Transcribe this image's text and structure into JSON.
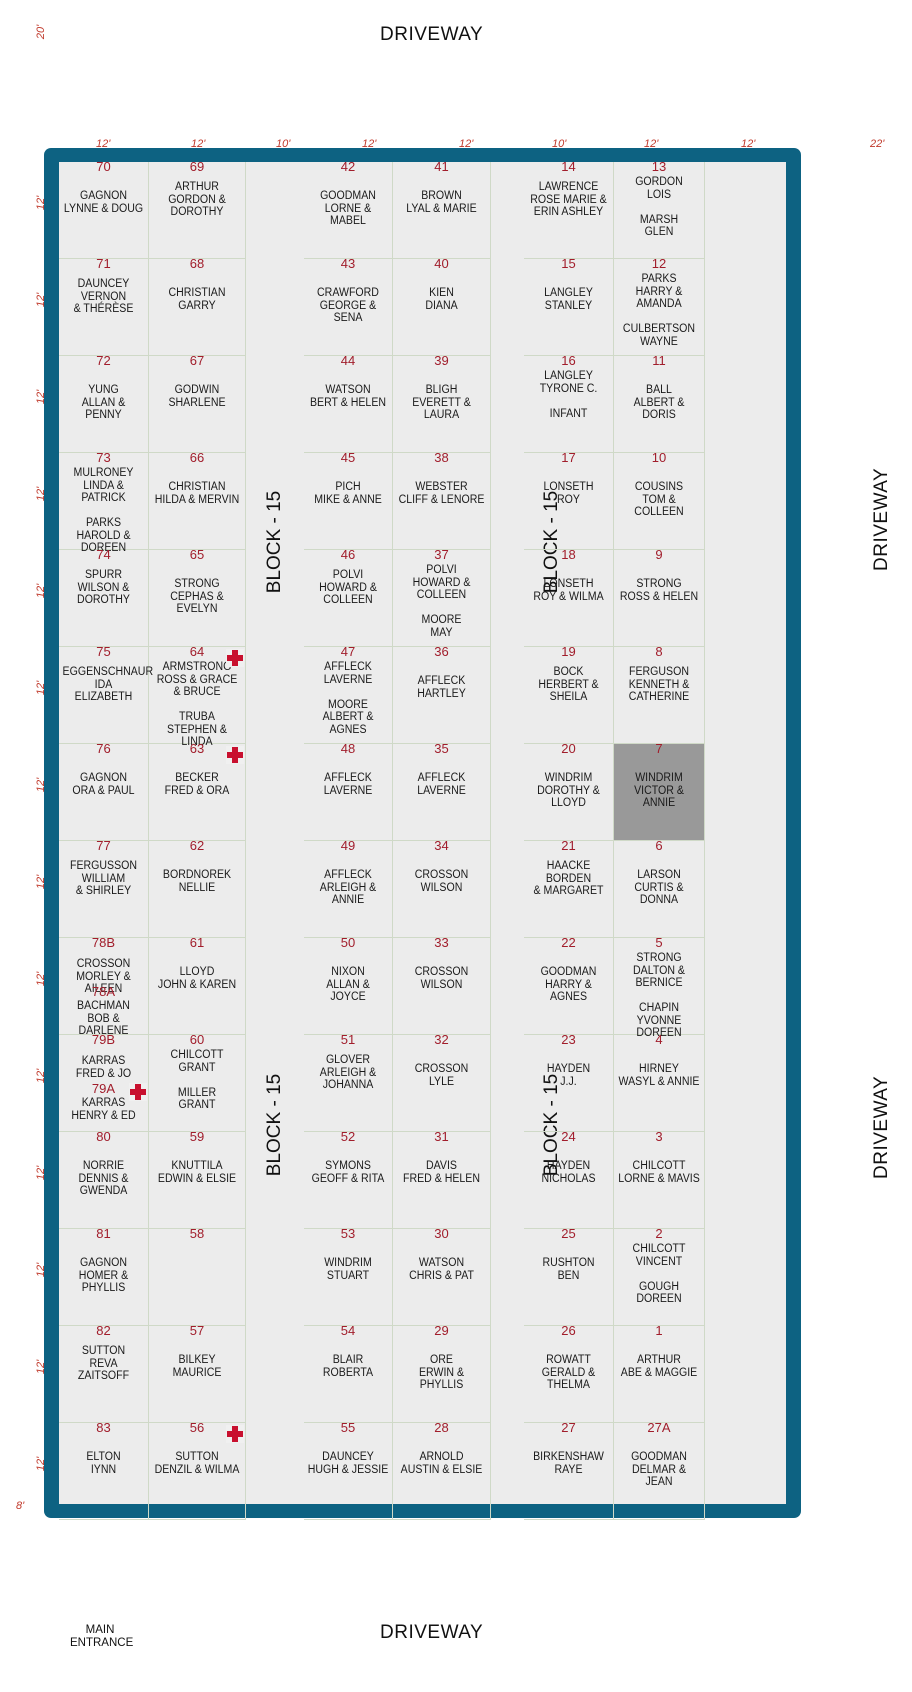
{
  "labels": {
    "driveway_top": "DRIVEWAY",
    "driveway_bottom": "DRIVEWAY",
    "driveway_right_upper": "DRIVEWAY",
    "driveway_right_lower": "DRIVEWAY",
    "block_label": "BLOCK - 15",
    "main_entrance": "MAIN\nENTRANCE"
  },
  "dimensions": {
    "top_left": "20'",
    "columns": [
      "12'",
      "12'",
      "10'",
      "12'",
      "12'",
      "10'",
      "12'",
      "12'",
      "22'"
    ],
    "rows": [
      "12'",
      "12'",
      "12'",
      "12'",
      "12'",
      "12'",
      "12'",
      "12'",
      "12'",
      "12'",
      "12'",
      "12'",
      "12'",
      "12'"
    ],
    "bottom_left": "8'"
  },
  "colors": {
    "border": "#0d6282",
    "plot_bg": "#ececec",
    "plot_number": "#a11d2b",
    "marker": "#c8102e",
    "highlight": "#999999"
  },
  "columns": [
    {
      "id": "c1",
      "plots": [
        {
          "num": "70",
          "names": "GAGNON\nLYNNE  &  DOUG"
        },
        {
          "num": "71",
          "names": "DAUNCEY\nVERNON\n& THÉRÈSE"
        },
        {
          "num": "72",
          "names": "YUNG\nALLAN & PENNY"
        },
        {
          "num": "73",
          "names": "MULRONEY\nLINDA & PATRICK\n\nPARKS\nHAROLD & DOREEN"
        },
        {
          "num": "74",
          "names": "SPURR\nWILSON &\nDOROTHY"
        },
        {
          "num": "75",
          "names": "EGGENSCHNAUR\nIDA\nELIZABETH"
        },
        {
          "num": "76",
          "names": "GAGNON\nORA & PAUL"
        },
        {
          "num": "77",
          "names": "FERGUSSON\nWILLIAM\n& SHIRLEY"
        },
        {
          "num": "78B",
          "names": "CROSSON\nMORLEY & AILEEN",
          "num2": "78A",
          "names2": "BACHMAN\nBOB & DARLENE"
        },
        {
          "num": "79B",
          "names": "KARRAS\nFRED & JO",
          "num2": "79A",
          "names2": "KARRAS\nHENRY & ED",
          "marker2": true
        },
        {
          "num": "80",
          "names": "NORRIE\nDENNIS & GWENDA"
        },
        {
          "num": "81",
          "names": "GAGNON\nHOMER & PHYLLIS"
        },
        {
          "num": "82",
          "names": "SUTTON\nREVA\nZAITSOFF"
        },
        {
          "num": "83",
          "names": "ELTON\nIYNN"
        }
      ]
    },
    {
      "id": "c2",
      "plots": [
        {
          "num": "69",
          "names": "ARTHUR\nGORDON &\nDOROTHY"
        },
        {
          "num": "68",
          "names": "CHRISTIAN\nGARRY"
        },
        {
          "num": "67",
          "names": "GODWIN\nSHARLENE"
        },
        {
          "num": "66",
          "names": "CHRISTIAN\nHILDA & MERVIN"
        },
        {
          "num": "65",
          "names": "STRONG\nCEPHAS & EVELYN"
        },
        {
          "num": "64",
          "names": "ARMSTRONG\nROSS & GRACE\n& BRUCE\n\nTRUBA\nSTEPHEN & LINDA",
          "marker": true
        },
        {
          "num": "63",
          "names": "BECKER\nFRED & ORA",
          "marker": true
        },
        {
          "num": "62",
          "names": "BORDNOREK\nNELLIE"
        },
        {
          "num": "61",
          "names": "LLOYD\nJOHN & KAREN"
        },
        {
          "num": "60",
          "names": "CHILCOTT\nGRANT\n\nMILLER\nGRANT"
        },
        {
          "num": "59",
          "names": "KNUTTILA\nEDWIN & ELSIE"
        },
        {
          "num": "58",
          "names": ""
        },
        {
          "num": "57",
          "names": "BILKEY\nMAURICE"
        },
        {
          "num": "56",
          "names": "SUTTON\nDENZIL & WILMA",
          "marker": true
        }
      ]
    },
    {
      "id": "c3",
      "plots": [
        {
          "num": "42",
          "names": "GOODMAN\nLORNE & MABEL"
        },
        {
          "num": "43",
          "names": "CRAWFORD\nGEORGE & SENA"
        },
        {
          "num": "44",
          "names": "WATSON\nBERT & HELEN"
        },
        {
          "num": "45",
          "names": "PICH\nMIKE & ANNE"
        },
        {
          "num": "46",
          "names": "POLVI\nHOWARD &\nCOLLEEN"
        },
        {
          "num": "47",
          "names": "AFFLECK\nLAVERNE\n\nMOORE\nALBERT & AGNES"
        },
        {
          "num": "48",
          "names": "AFFLECK\nLAVERNE"
        },
        {
          "num": "49",
          "names": "AFFLECK\nARLEIGH & ANNIE"
        },
        {
          "num": "50",
          "names": "NIXON\nALLAN & JOYCE"
        },
        {
          "num": "51",
          "names": "GLOVER\nARLEIGH &\nJOHANNA"
        },
        {
          "num": "52",
          "names": "SYMONS\nGEOFF & RITA"
        },
        {
          "num": "53",
          "names": "WINDRIM\nSTUART"
        },
        {
          "num": "54",
          "names": "BLAIR\nROBERTA"
        },
        {
          "num": "55",
          "names": "DAUNCEY\nHUGH & JESSIE"
        }
      ]
    },
    {
      "id": "c4",
      "plots": [
        {
          "num": "41",
          "names": "BROWN\nLYAL & MARIE"
        },
        {
          "num": "40",
          "names": "KIEN\nDIANA"
        },
        {
          "num": "39",
          "names": "BLIGH\nEVERETT & LAURA"
        },
        {
          "num": "38",
          "names": "WEBSTER\nCLIFF & LENORE"
        },
        {
          "num": "37",
          "names": "POLVI\nHOWARD &\nCOLLEEN\n\nMOORE\nMAY"
        },
        {
          "num": "36",
          "names": "AFFLECK\nHARTLEY"
        },
        {
          "num": "35",
          "names": "AFFLECK\nLAVERNE"
        },
        {
          "num": "34",
          "names": "CROSSON\nWILSON"
        },
        {
          "num": "33",
          "names": "CROSSON\nWILSON"
        },
        {
          "num": "32",
          "names": "CROSSON\nLYLE"
        },
        {
          "num": "31",
          "names": "DAVIS\nFRED & HELEN"
        },
        {
          "num": "30",
          "names": "WATSON\nCHRIS & PAT"
        },
        {
          "num": "29",
          "names": "ORE\nERWIN & PHYLLIS"
        },
        {
          "num": "28",
          "names": "ARNOLD\nAUSTIN & ELSIE"
        }
      ]
    },
    {
      "id": "c5",
      "plots": [
        {
          "num": "14",
          "names": "LAWRENCE\nROSE MARIE &\nERIN ASHLEY"
        },
        {
          "num": "15",
          "names": "LANGLEY\nSTANLEY"
        },
        {
          "num": "16",
          "names": "LANGLEY\nTYRONE C.\n\nINFANT"
        },
        {
          "num": "17",
          "names": "LONSETH\nROY"
        },
        {
          "num": "18",
          "names": "LONSETH\nROY & WILMA"
        },
        {
          "num": "19",
          "names": "BOCK\nHERBERT &\nSHEILA"
        },
        {
          "num": "20",
          "names": "WINDRIM\nDOROTHY & LLOYD"
        },
        {
          "num": "21",
          "names": "HAACKE\nBORDEN\n& MARGARET"
        },
        {
          "num": "22",
          "names": "GOODMAN\nHARRY & AGNES"
        },
        {
          "num": "23",
          "names": "HAYDEN\nJ.J."
        },
        {
          "num": "24",
          "names": "HAYDEN\nNICHOLAS"
        },
        {
          "num": "25",
          "names": "RUSHTON\nBEN"
        },
        {
          "num": "26",
          "names": "ROWATT\nGERALD & THELMA"
        },
        {
          "num": "27",
          "names": "BIRKENSHAW\nRAYE"
        }
      ]
    },
    {
      "id": "c6",
      "plots": [
        {
          "num": "13",
          "names": "GORDON\nLOIS\n\nMARSH\nGLEN"
        },
        {
          "num": "12",
          "names": "PARKS\nHARRY & AMANDA\n\nCULBERTSON\nWAYNE"
        },
        {
          "num": "11",
          "names": "BALL\nALBERT & DORIS"
        },
        {
          "num": "10",
          "names": "COUSINS\nTOM & COLLEEN"
        },
        {
          "num": "9",
          "names": "STRONG\nROSS & HELEN"
        },
        {
          "num": "8",
          "names": "FERGUSON\nKENNETH &\nCATHERINE"
        },
        {
          "num": "7",
          "names": "WINDRIM\nVICTOR & ANNIE",
          "highlight": true
        },
        {
          "num": "6",
          "names": "LARSON\nCURTIS & DONNA"
        },
        {
          "num": "5",
          "names": "STRONG\nDALTON & BERNICE\n\nCHAPIN\nYVONNE DOREEN"
        },
        {
          "num": "4",
          "names": "HIRNEY\nWASYL & ANNIE"
        },
        {
          "num": "3",
          "names": "CHILCOTT\nLORNE & MAVIS"
        },
        {
          "num": "2",
          "names": "CHILCOTT\nVINCENT\n\nGOUGH\nDOREEN"
        },
        {
          "num": "1",
          "names": "ARTHUR\nABE & MAGGIE"
        },
        {
          "num": "27A",
          "names": "GOODMAN\nDELMAR & JEAN"
        }
      ]
    }
  ]
}
